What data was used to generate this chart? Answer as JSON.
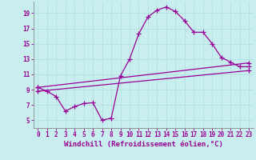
{
  "xlabel": "Windchill (Refroidissement éolien,°C)",
  "bg_color": "#c8eef0",
  "line_color": "#990099",
  "grid_color": "#b0dde0",
  "xlim": [
    -0.5,
    23.5
  ],
  "ylim": [
    4.0,
    20.5
  ],
  "yticks": [
    5,
    7,
    9,
    11,
    13,
    15,
    17,
    19
  ],
  "xticks": [
    0,
    1,
    2,
    3,
    4,
    5,
    6,
    7,
    8,
    9,
    10,
    11,
    12,
    13,
    14,
    15,
    16,
    17,
    18,
    19,
    20,
    21,
    22,
    23
  ],
  "line1_x": [
    0,
    1,
    2,
    3,
    4,
    5,
    6,
    7,
    8,
    9,
    10,
    11,
    12,
    13,
    14,
    15,
    16,
    17,
    18,
    19,
    20,
    21,
    22,
    23
  ],
  "line1_y": [
    9.3,
    8.8,
    8.1,
    6.2,
    6.8,
    7.2,
    7.3,
    5.0,
    5.3,
    10.8,
    13.0,
    16.3,
    18.5,
    19.4,
    19.8,
    19.2,
    18.0,
    16.5,
    16.5,
    15.0,
    13.2,
    12.6,
    12.0,
    12.0
  ],
  "line2_x": [
    0,
    23
  ],
  "line2_y": [
    9.3,
    12.5
  ],
  "line3_x": [
    0,
    23
  ],
  "line3_y": [
    8.8,
    11.5
  ],
  "marker": "+",
  "markersize": 4,
  "linewidth": 0.9,
  "tick_fontsize": 5.5,
  "xlabel_fontsize": 6.5
}
